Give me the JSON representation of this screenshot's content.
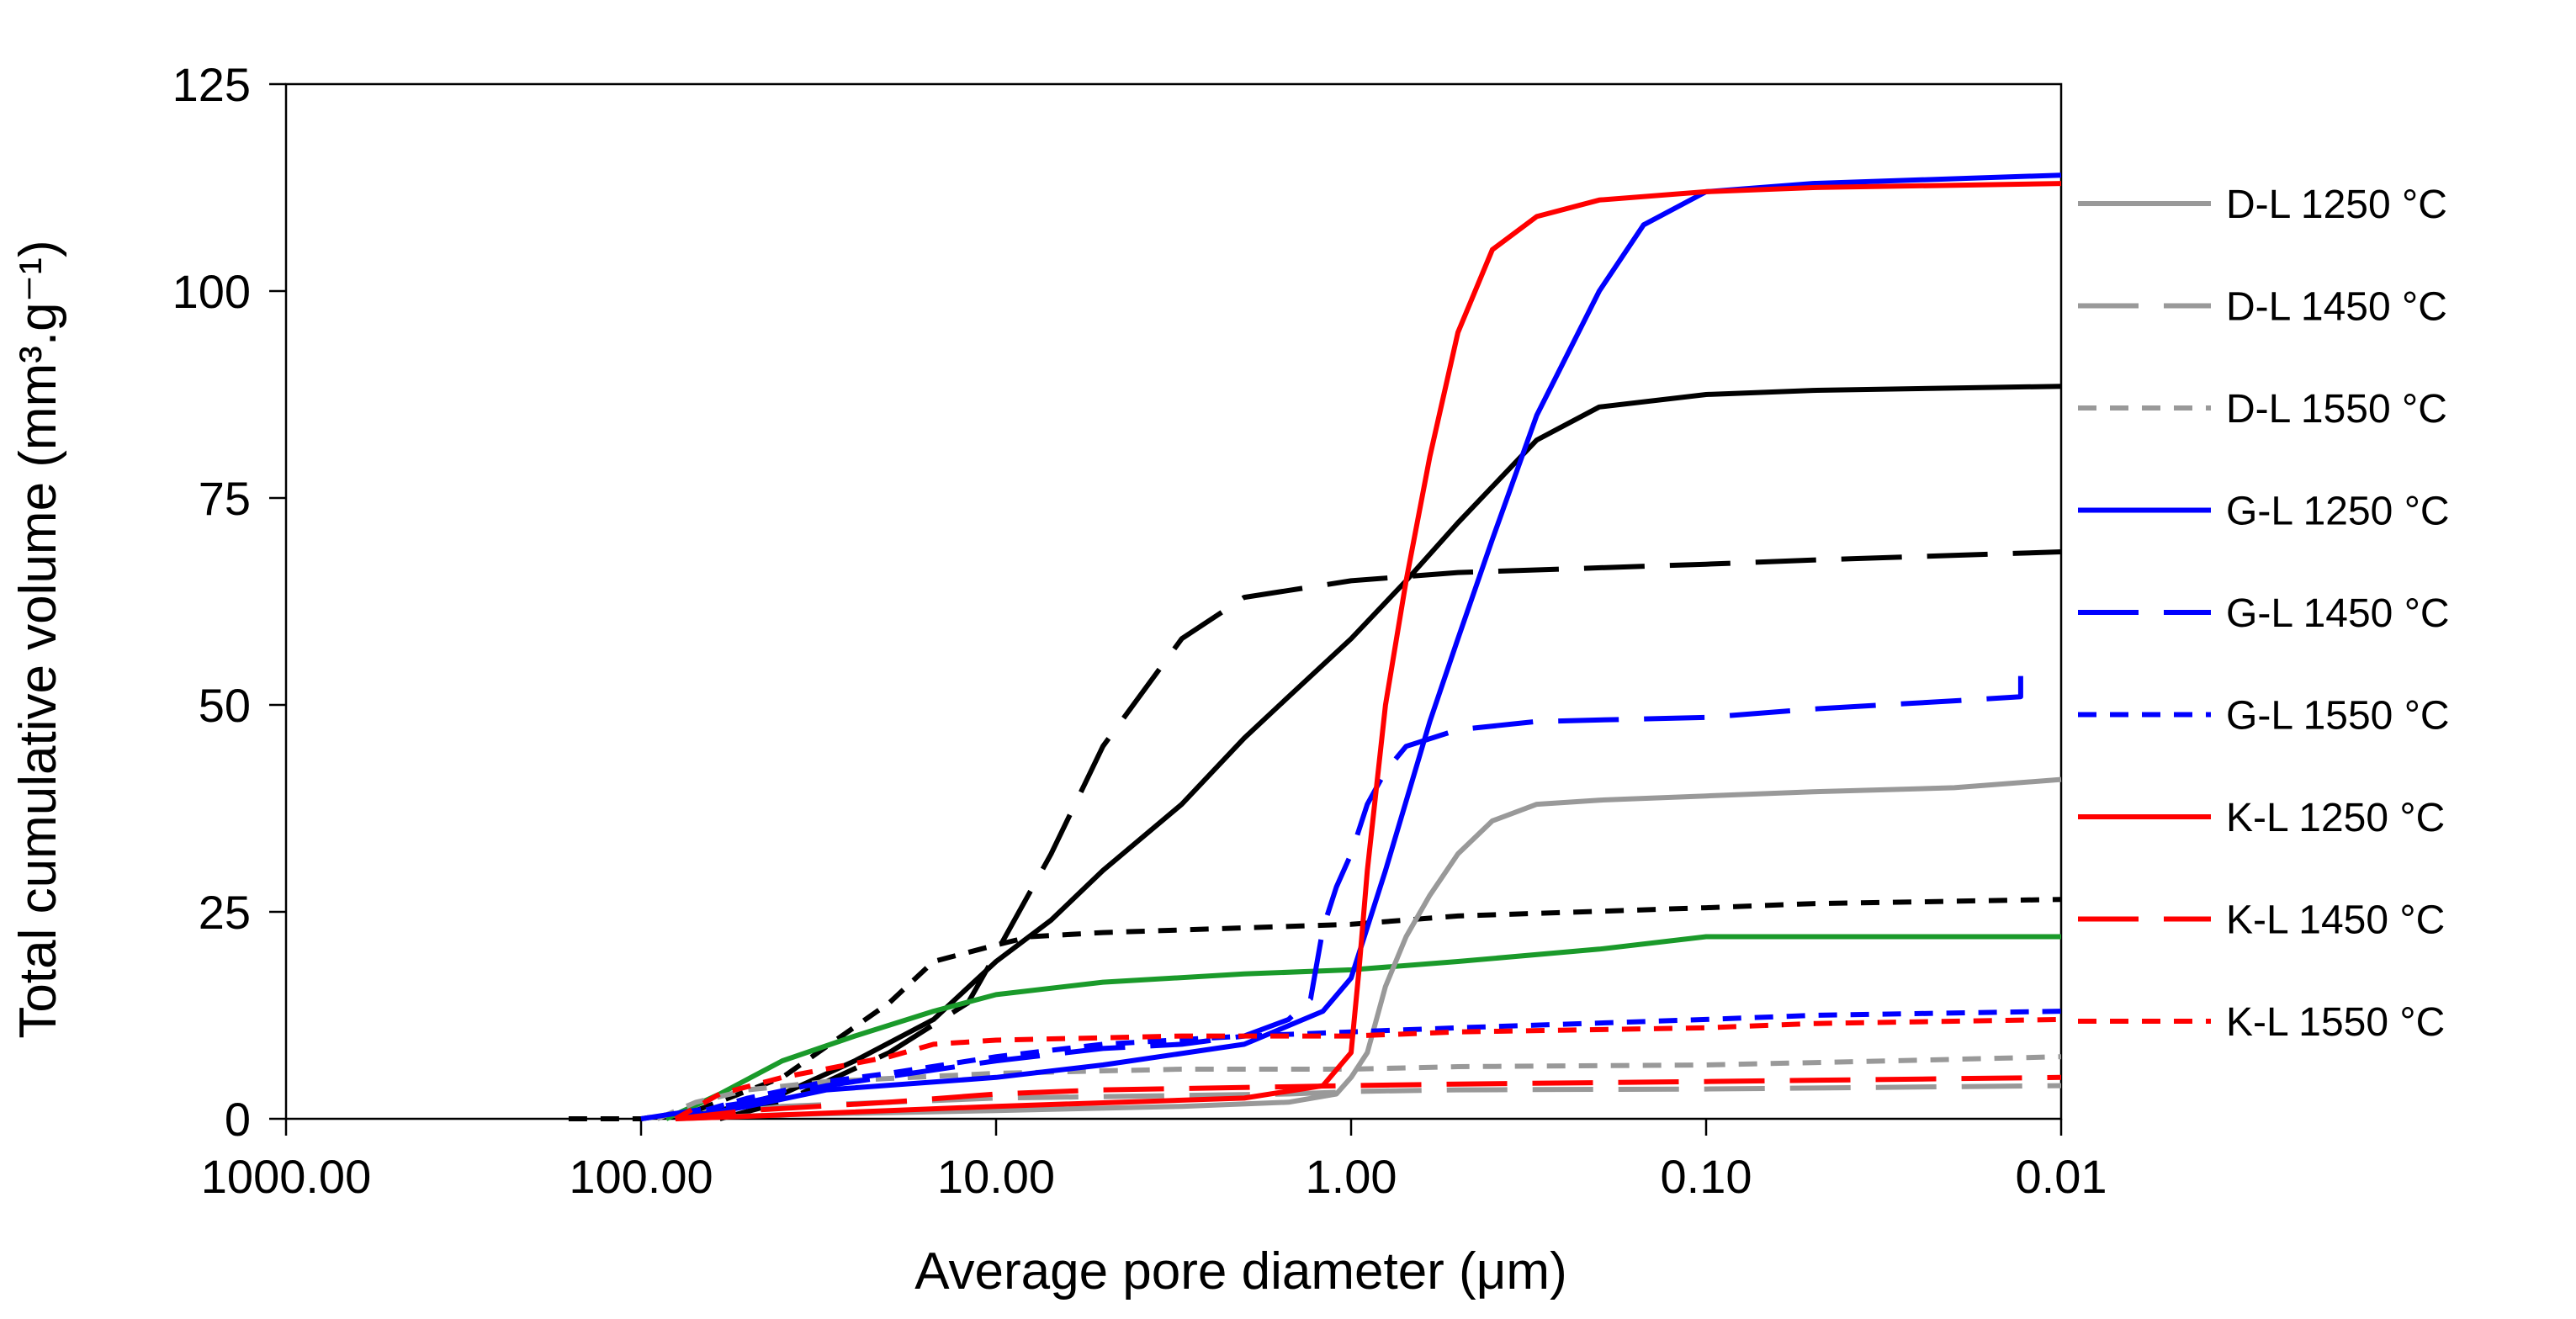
{
  "chart_data": {
    "type": "line",
    "title": "",
    "xlabel": "Average pore diameter (μm)",
    "ylabel": "Total cumulative volume (mm³.g⁻¹)",
    "xscale": "log",
    "x_reversed": true,
    "xlim": [
      1000,
      0.01
    ],
    "ylim": [
      0,
      125
    ],
    "x_ticks": [
      1000,
      100,
      10,
      1,
      0.1,
      0.01
    ],
    "x_tick_labels": [
      "1000.00",
      "100.00",
      "10.00",
      "1.00",
      "0.10",
      "0.01"
    ],
    "y_ticks": [
      0,
      25,
      50,
      75,
      100,
      125
    ],
    "y_tick_labels": [
      "0",
      "25",
      "50",
      "75",
      "100",
      "125"
    ],
    "grid": false,
    "legend_position": "right",
    "series": [
      {
        "name": "D-L 1250 °C",
        "color": "#999999",
        "dash": "solid",
        "legend": true,
        "points": [
          [
            80,
            0
          ],
          [
            40,
            0.5
          ],
          [
            10,
            1
          ],
          [
            3,
            1.5
          ],
          [
            1.5,
            2
          ],
          [
            1.1,
            3
          ],
          [
            1,
            5
          ],
          [
            0.9,
            8
          ],
          [
            0.8,
            16
          ],
          [
            0.7,
            22
          ],
          [
            0.6,
            27
          ],
          [
            0.5,
            32
          ],
          [
            0.4,
            36
          ],
          [
            0.3,
            38
          ],
          [
            0.2,
            38.5
          ],
          [
            0.1,
            39
          ],
          [
            0.05,
            39.5
          ],
          [
            0.02,
            40
          ],
          [
            0.01,
            41
          ]
        ]
      },
      {
        "name": "D-L 1450 °C",
        "color": "#999999",
        "dash": "long",
        "legend": true,
        "points": [
          [
            80,
            0
          ],
          [
            40,
            1.5
          ],
          [
            10,
            2.5
          ],
          [
            1.5,
            3
          ],
          [
            1.1,
            3.2
          ],
          [
            1,
            3.3
          ],
          [
            0.5,
            3.5
          ],
          [
            0.1,
            3.6
          ],
          [
            0.01,
            4
          ]
        ]
      },
      {
        "name": "D-L 1550 °C",
        "color": "#999999",
        "dash": "short",
        "legend": true,
        "points": [
          [
            90,
            0
          ],
          [
            70,
            2
          ],
          [
            50,
            3.5
          ],
          [
            30,
            4.5
          ],
          [
            10,
            5.5
          ],
          [
            3,
            6
          ],
          [
            1,
            6
          ],
          [
            0.5,
            6.3
          ],
          [
            0.1,
            6.5
          ],
          [
            0.03,
            7
          ],
          [
            0.01,
            7.5
          ]
        ]
      },
      {
        "name": "G-L 1250 °C",
        "color": "#0000ff",
        "dash": "solid",
        "legend": true,
        "points": [
          [
            80,
            0
          ],
          [
            50,
            1.5
          ],
          [
            30,
            3.5
          ],
          [
            10,
            5
          ],
          [
            5,
            6.5
          ],
          [
            2,
            9
          ],
          [
            1.2,
            13
          ],
          [
            1,
            17
          ],
          [
            0.8,
            30
          ],
          [
            0.6,
            48
          ],
          [
            0.5,
            58
          ],
          [
            0.4,
            70
          ],
          [
            0.3,
            85
          ],
          [
            0.2,
            100
          ],
          [
            0.15,
            108
          ],
          [
            0.1,
            112
          ],
          [
            0.05,
            113
          ],
          [
            0.01,
            114
          ]
        ]
      },
      {
        "name": "G-L 1450 °C",
        "color": "#0000ff",
        "dash": "long",
        "legend": true,
        "points": [
          [
            100,
            0
          ],
          [
            50,
            2
          ],
          [
            30,
            4
          ],
          [
            10,
            7
          ],
          [
            5,
            8.5
          ],
          [
            3,
            9
          ],
          [
            2,
            10
          ],
          [
            1.5,
            12
          ],
          [
            1.3,
            14.5
          ],
          [
            1.2,
            23
          ],
          [
            1.1,
            28
          ],
          [
            1,
            32
          ],
          [
            0.9,
            38
          ],
          [
            0.8,
            42
          ],
          [
            0.7,
            45
          ],
          [
            0.5,
            47
          ],
          [
            0.3,
            48
          ],
          [
            0.1,
            48.5
          ],
          [
            0.05,
            49.5
          ],
          [
            0.02,
            50.5
          ],
          [
            0.013,
            51
          ],
          [
            0.013,
            53.5
          ]
        ]
      },
      {
        "name": "G-L 1550 °C",
        "color": "#0000ff",
        "dash": "short",
        "legend": true,
        "points": [
          [
            80,
            0
          ],
          [
            50,
            2.5
          ],
          [
            30,
            4.5
          ],
          [
            20,
            5.5
          ],
          [
            10,
            7.5
          ],
          [
            5,
            9
          ],
          [
            2,
            10
          ],
          [
            1,
            10.5
          ],
          [
            0.5,
            11
          ],
          [
            0.1,
            12
          ],
          [
            0.05,
            12.5
          ],
          [
            0.01,
            13
          ]
        ]
      },
      {
        "name": "K-L 1250 °C",
        "color": "#ff0000",
        "dash": "solid",
        "legend": true,
        "points": [
          [
            80,
            0
          ],
          [
            50,
            0.3
          ],
          [
            10,
            1.5
          ],
          [
            2,
            2.5
          ],
          [
            1.2,
            4
          ],
          [
            1.0,
            8
          ],
          [
            0.95,
            18
          ],
          [
            0.9,
            30
          ],
          [
            0.8,
            50
          ],
          [
            0.7,
            65
          ],
          [
            0.6,
            80
          ],
          [
            0.5,
            95
          ],
          [
            0.4,
            105
          ],
          [
            0.3,
            109
          ],
          [
            0.2,
            111
          ],
          [
            0.1,
            112
          ],
          [
            0.05,
            112.5
          ],
          [
            0.01,
            113
          ]
        ]
      },
      {
        "name": "K-L 1450 °C",
        "color": "#ff0000",
        "dash": "long",
        "legend": true,
        "points": [
          [
            80,
            0
          ],
          [
            50,
            1
          ],
          [
            20,
            2
          ],
          [
            10,
            3
          ],
          [
            5,
            3.5
          ],
          [
            1,
            4
          ],
          [
            0.5,
            4.2
          ],
          [
            0.1,
            4.5
          ],
          [
            0.01,
            5
          ]
        ]
      },
      {
        "name": "K-L 1550 °C",
        "color": "#ff0000",
        "dash": "short",
        "legend": true,
        "points": [
          [
            80,
            0
          ],
          [
            60,
            3
          ],
          [
            40,
            5
          ],
          [
            20,
            7.5
          ],
          [
            15,
            9
          ],
          [
            10,
            9.5
          ],
          [
            3,
            10
          ],
          [
            1,
            10
          ],
          [
            0.5,
            10.5
          ],
          [
            0.1,
            11
          ],
          [
            0.05,
            11.5
          ],
          [
            0.01,
            12
          ]
        ]
      },
      {
        "name": "",
        "color": "#000000",
        "dash": "solid",
        "legend": false,
        "points": [
          [
            80,
            0
          ],
          [
            60,
            1
          ],
          [
            40,
            3
          ],
          [
            25,
            7
          ],
          [
            15,
            12
          ],
          [
            10,
            19
          ],
          [
            7,
            24
          ],
          [
            5,
            30
          ],
          [
            3,
            38
          ],
          [
            2,
            46
          ],
          [
            1.5,
            51
          ],
          [
            1,
            58
          ],
          [
            0.7,
            65
          ],
          [
            0.5,
            72
          ],
          [
            0.3,
            82
          ],
          [
            0.2,
            86
          ],
          [
            0.1,
            87.5
          ],
          [
            0.05,
            88
          ],
          [
            0.01,
            88.5
          ]
        ]
      },
      {
        "name": "",
        "color": "#000000",
        "dash": "long",
        "legend": false,
        "points": [
          [
            60,
            0
          ],
          [
            40,
            2
          ],
          [
            20,
            8
          ],
          [
            12,
            14
          ],
          [
            10,
            20
          ],
          [
            7,
            32
          ],
          [
            5,
            45
          ],
          [
            3,
            58
          ],
          [
            2,
            63
          ],
          [
            1,
            65
          ],
          [
            0.5,
            66
          ],
          [
            0.1,
            67
          ],
          [
            0.05,
            67.5
          ],
          [
            0.01,
            68.5
          ]
        ]
      },
      {
        "name": "",
        "color": "#000000",
        "dash": "short",
        "legend": false,
        "points": [
          [
            160,
            0
          ],
          [
            100,
            0
          ],
          [
            70,
            1
          ],
          [
            40,
            5
          ],
          [
            20,
            14
          ],
          [
            15,
            19
          ],
          [
            10,
            21
          ],
          [
            8,
            22
          ],
          [
            5,
            22.5
          ],
          [
            1,
            23.5
          ],
          [
            0.5,
            24.5
          ],
          [
            0.1,
            25.5
          ],
          [
            0.05,
            26
          ],
          [
            0.01,
            26.5
          ]
        ]
      },
      {
        "name": "",
        "color": "#1a9a2a",
        "dash": "solid",
        "legend": false,
        "points": [
          [
            85,
            0
          ],
          [
            60,
            3
          ],
          [
            40,
            7
          ],
          [
            25,
            10
          ],
          [
            15,
            13
          ],
          [
            10,
            15
          ],
          [
            5,
            16.5
          ],
          [
            2,
            17.5
          ],
          [
            1,
            18
          ],
          [
            0.5,
            19
          ],
          [
            0.2,
            20.5
          ],
          [
            0.1,
            22
          ],
          [
            0.05,
            22
          ],
          [
            0.01,
            22
          ]
        ]
      }
    ]
  }
}
